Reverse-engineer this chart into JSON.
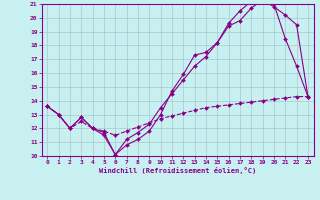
{
  "background_color": "#c8f0f0",
  "grid_color": "#a8c8d0",
  "line_color": "#880088",
  "xlabel": "Windchill (Refroidissement éolien,°C)",
  "xlim": [
    -0.5,
    23.5
  ],
  "ylim": [
    10,
    21
  ],
  "yticks": [
    10,
    11,
    12,
    13,
    14,
    15,
    16,
    17,
    18,
    19,
    20,
    21
  ],
  "xticks": [
    0,
    1,
    2,
    3,
    4,
    5,
    6,
    7,
    8,
    9,
    10,
    11,
    12,
    13,
    14,
    15,
    16,
    17,
    18,
    19,
    20,
    21,
    22,
    23
  ],
  "curve1_x": [
    0,
    1,
    2,
    3,
    4,
    5,
    6,
    7,
    8,
    9,
    10,
    11,
    12,
    13,
    14,
    15,
    16,
    17,
    18,
    19,
    20,
    21,
    22,
    23
  ],
  "curve1_y": [
    13.6,
    13.0,
    12.0,
    12.8,
    12.0,
    11.5,
    10.1,
    10.8,
    11.2,
    11.8,
    13.0,
    14.7,
    15.9,
    17.3,
    17.5,
    18.2,
    19.4,
    19.8,
    20.7,
    21.3,
    21.0,
    18.5,
    16.5,
    14.3
  ],
  "curve2_x": [
    0,
    1,
    2,
    3,
    4,
    5,
    6,
    7,
    8,
    9,
    10,
    11,
    12,
    13,
    14,
    15,
    16,
    17,
    18,
    19,
    20,
    21,
    22,
    23
  ],
  "curve2_y": [
    13.6,
    13.0,
    12.0,
    12.8,
    12.0,
    11.7,
    10.1,
    11.2,
    11.7,
    12.3,
    13.5,
    14.5,
    15.5,
    16.5,
    17.2,
    18.2,
    19.6,
    20.5,
    21.2,
    21.3,
    20.8,
    20.2,
    19.5,
    14.3
  ],
  "curve3_x": [
    0,
    1,
    2,
    3,
    4,
    5,
    6,
    7,
    8,
    9,
    10,
    11,
    12,
    13,
    14,
    15,
    16,
    17,
    18,
    19,
    20,
    21,
    22,
    23
  ],
  "curve3_y": [
    13.6,
    13.0,
    12.0,
    12.5,
    12.0,
    11.8,
    11.5,
    11.8,
    12.1,
    12.4,
    12.7,
    12.9,
    13.1,
    13.3,
    13.5,
    13.6,
    13.7,
    13.8,
    13.9,
    14.0,
    14.1,
    14.2,
    14.3,
    14.3
  ]
}
